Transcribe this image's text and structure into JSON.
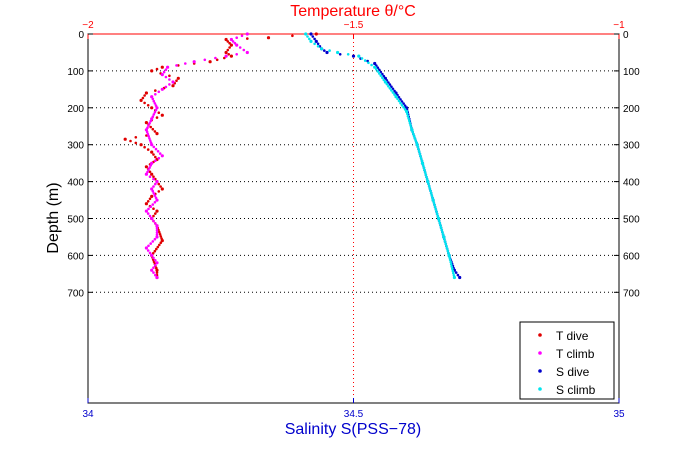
{
  "chart_data": {
    "type": "scatter",
    "top_axis": {
      "label": "Temperature θ/°C",
      "range": [
        -2,
        -1
      ],
      "ticks": [
        "−2",
        "−1.5",
        "−1"
      ],
      "tick_values": [
        -2,
        -1.5,
        -1
      ],
      "color": "#ff0000"
    },
    "bottom_axis": {
      "label": "Salinity S(PSS−78)",
      "range": [
        34,
        35
      ],
      "ticks": [
        "34",
        "34.5",
        "35"
      ],
      "tick_values": [
        34,
        34.5,
        35
      ],
      "color": "#0000cc"
    },
    "y_axis": {
      "label": "Depth (m)",
      "range": [
        0,
        1000
      ],
      "inverted": true,
      "ticks": [
        "0",
        "100",
        "200",
        "300",
        "400",
        "500",
        "600",
        "700"
      ],
      "tick_values": [
        0,
        100,
        200,
        300,
        400,
        500,
        600,
        700
      ]
    },
    "grid": "dotted horizontal lines at 0–700 m; vertical dotted line at center",
    "legend_position": "bottom-right",
    "series": [
      {
        "name": "T dive",
        "axis": "temperature",
        "color": "#e00000",
        "x": [
          -1.57,
          -1.66,
          -1.74,
          -1.73,
          -1.74,
          -1.73,
          -1.77,
          -1.86,
          -1.88,
          -1.83,
          -1.84,
          -1.89,
          -1.9,
          -1.88,
          -1.86,
          -1.89,
          -1.87,
          -1.93,
          -1.9,
          -1.88,
          -1.87,
          -1.89,
          -1.88,
          -1.87,
          -1.86,
          -1.88,
          -1.89,
          -1.87,
          -1.88,
          -1.87,
          -1.86,
          -1.88,
          -1.87,
          -1.87
        ],
        "y": [
          0,
          10,
          15,
          30,
          50,
          60,
          75,
          90,
          100,
          120,
          140,
          160,
          180,
          200,
          220,
          240,
          270,
          285,
          300,
          320,
          340,
          360,
          380,
          400,
          420,
          440,
          460,
          480,
          500,
          520,
          560,
          600,
          640,
          660
        ]
      },
      {
        "name": "T climb",
        "axis": "temperature",
        "color": "#ff00ff",
        "x": [
          -1.7,
          -1.73,
          -1.72,
          -1.7,
          -1.74,
          -1.8,
          -1.85,
          -1.86,
          -1.84,
          -1.86,
          -1.88,
          -1.87,
          -1.88,
          -1.89,
          -1.88,
          -1.86,
          -1.88,
          -1.89,
          -1.87,
          -1.88,
          -1.87,
          -1.89,
          -1.88,
          -1.87,
          -1.87,
          -1.89,
          -1.88,
          -1.87,
          -1.88,
          -1.87
        ],
        "y": [
          0,
          15,
          30,
          50,
          60,
          75,
          90,
          110,
          130,
          150,
          170,
          200,
          230,
          260,
          300,
          330,
          350,
          380,
          400,
          420,
          450,
          480,
          500,
          520,
          550,
          580,
          600,
          620,
          640,
          660
        ]
      },
      {
        "name": "S dive",
        "axis": "salinity",
        "color": "#0000cc",
        "x": [
          34.42,
          34.43,
          34.44,
          34.45,
          34.5,
          34.54,
          34.56,
          34.58,
          34.6,
          34.61,
          34.62,
          34.63,
          34.64,
          34.65,
          34.66,
          34.67,
          34.68,
          34.69,
          34.7
        ],
        "y": [
          0,
          20,
          40,
          50,
          60,
          80,
          120,
          160,
          200,
          260,
          300,
          350,
          400,
          450,
          500,
          550,
          600,
          640,
          660
        ]
      },
      {
        "name": "S climb",
        "axis": "salinity",
        "color": "#00e5ee",
        "x": [
          34.41,
          34.42,
          34.44,
          34.47,
          34.51,
          34.54,
          34.56,
          34.58,
          34.6,
          34.61,
          34.62,
          34.63,
          34.64,
          34.65,
          34.66,
          34.67,
          34.68,
          34.69
        ],
        "y": [
          0,
          20,
          40,
          50,
          60,
          90,
          130,
          170,
          210,
          260,
          300,
          350,
          400,
          450,
          500,
          550,
          600,
          660
        ]
      }
    ]
  }
}
